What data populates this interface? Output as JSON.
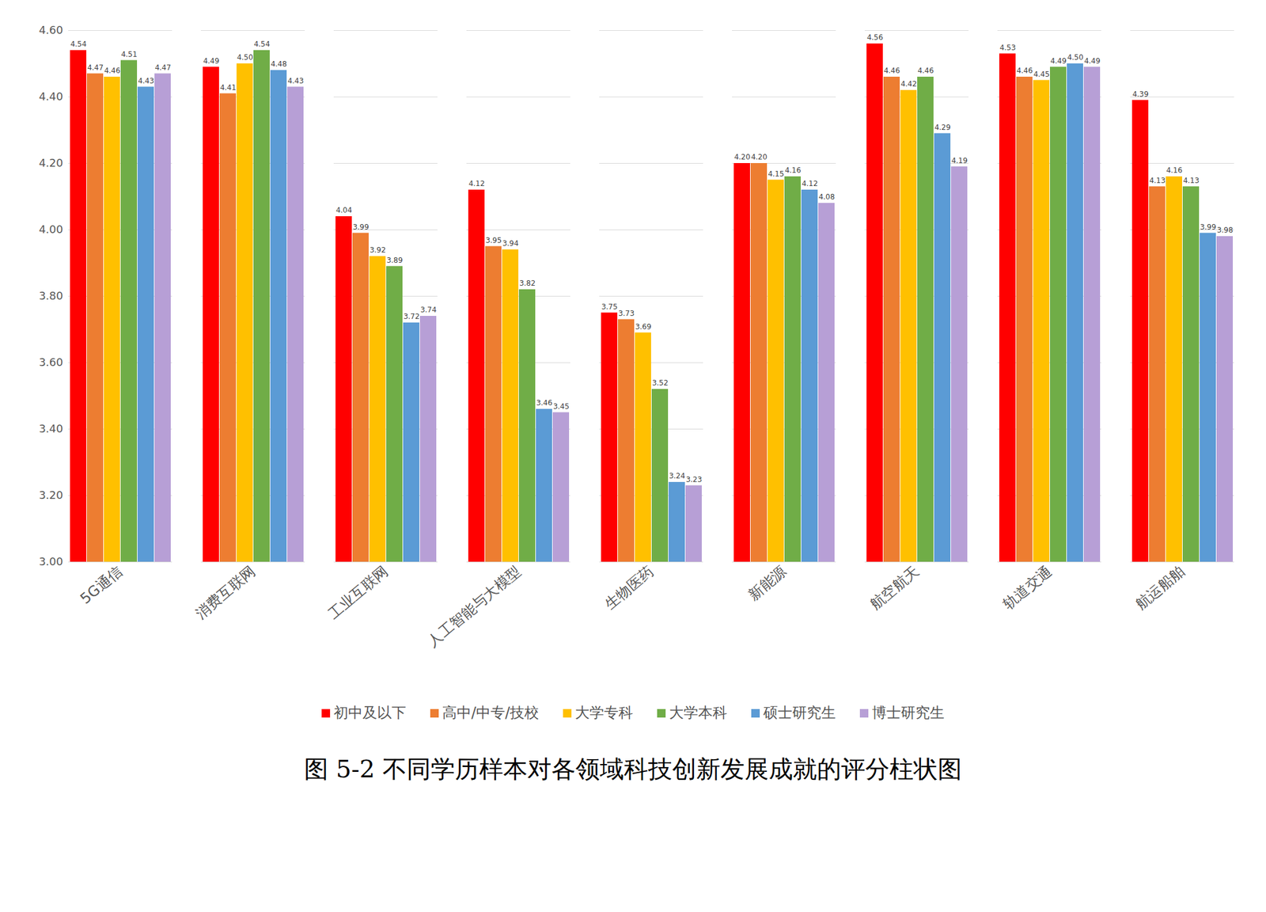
{
  "chart_data": {
    "type": "bar",
    "title": "图 5-2 不同学历样本对各领域科技创新发展成就的评分柱状图",
    "categories": [
      "5G通信",
      "消费互联网",
      "工业互联网",
      "人工智能与大模型",
      "生物医药",
      "新能源",
      "航空航天",
      "轨道交通",
      "航运船舶"
    ],
    "series": [
      {
        "name": "初中及以下",
        "color": "#ff0000",
        "values": [
          4.54,
          4.49,
          4.04,
          4.12,
          3.75,
          4.2,
          4.56,
          4.53,
          4.39
        ],
        "value_labels": [
          "4.54",
          "4.49",
          "4.04",
          "4.12",
          "3.75",
          "4.20",
          "4.56",
          "4.53",
          "4.39"
        ]
      },
      {
        "name": "高中/中专/技校",
        "color": "#ed7d31",
        "values": [
          4.47,
          4.41,
          3.99,
          3.95,
          3.73,
          4.2,
          4.46,
          4.46,
          4.13
        ],
        "value_labels": [
          "4.47",
          "4.41",
          "3.99",
          "3.95",
          "3.73",
          "4.20",
          "4.46",
          "4.46",
          "4.13"
        ]
      },
      {
        "name": "大学专科",
        "color": "#ffc000",
        "values": [
          4.46,
          4.5,
          3.92,
          3.94,
          3.69,
          4.15,
          4.42,
          4.45,
          4.16
        ],
        "value_labels": [
          "4.46",
          "4.50",
          "3.92",
          "3.94",
          "3.69",
          "4.15",
          "4.42",
          "4.45",
          "4.16"
        ]
      },
      {
        "name": "大学本科",
        "color": "#70ad47",
        "values": [
          4.51,
          4.54,
          3.89,
          3.82,
          3.52,
          4.16,
          4.46,
          4.49,
          4.13
        ],
        "value_labels": [
          "4.51",
          "4.54",
          "3.89",
          "3.82",
          "3.52",
          "4.16",
          "4.46",
          "4.49",
          "4.13"
        ]
      },
      {
        "name": "硕士研究生",
        "color": "#5b9bd5",
        "values": [
          4.43,
          4.48,
          3.72,
          3.46,
          3.24,
          4.12,
          4.29,
          4.5,
          3.99
        ],
        "value_labels": [
          "4.43",
          "4.48",
          "3.72",
          "3.46",
          "3.24",
          "4.12",
          "4.29",
          "4.50",
          "3.99"
        ]
      },
      {
        "name": "博士研究生",
        "color": "#b79fd6",
        "values": [
          4.47,
          4.43,
          3.74,
          3.45,
          3.23,
          4.08,
          4.19,
          4.49,
          3.98
        ],
        "value_labels": [
          "4.47",
          "4.43",
          "3.74",
          "3.45",
          "3.23",
          "4.08",
          "4.19",
          "4.49",
          "3.98"
        ]
      }
    ],
    "ylim": [
      3.0,
      4.6
    ],
    "yticks": [
      {
        "value": 3.0,
        "label": "3.00"
      },
      {
        "value": 3.2,
        "label": "3.20"
      },
      {
        "value": 3.4,
        "label": "3.40"
      },
      {
        "value": 3.6,
        "label": "3.60"
      },
      {
        "value": 3.8,
        "label": "3.80"
      },
      {
        "value": 4.0,
        "label": "4.00"
      },
      {
        "value": 4.2,
        "label": "4.20"
      },
      {
        "value": 4.4,
        "label": "4.40"
      },
      {
        "value": 4.6,
        "label": "4.60"
      }
    ],
    "grid": true,
    "data_labels": true,
    "legend": "bottom"
  }
}
